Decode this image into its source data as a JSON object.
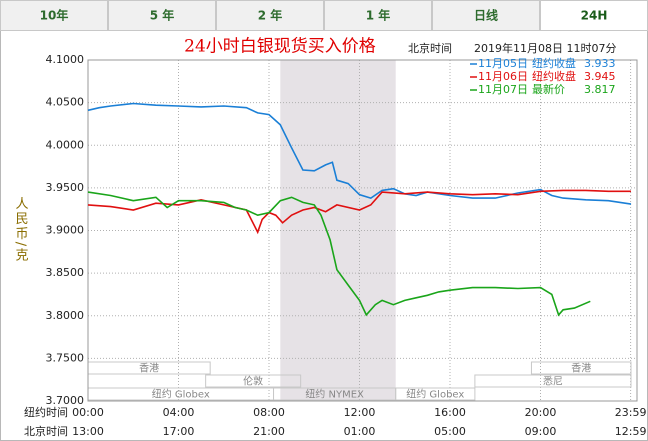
{
  "tabs": [
    "10年",
    "5 年",
    "2 年",
    "1 年",
    "日线",
    "24H"
  ],
  "active_tab": "24H",
  "chart_data": {
    "type": "line",
    "title": "24小时白银现货买入价格",
    "updated_label": "北京时间",
    "updated_time": "2019年11月08日 11时07分",
    "y_label": "人民币/克",
    "x_row_label": "纽约时间",
    "x2_row_label": "北京时间",
    "xlim": [
      0,
      24
    ],
    "xticks": [
      {
        "value": 0,
        "label": "00:00"
      },
      {
        "value": 4,
        "label": "04:00"
      },
      {
        "value": 8,
        "label": "08:00"
      },
      {
        "value": 12,
        "label": "12:00"
      },
      {
        "value": 16,
        "label": "16:00"
      },
      {
        "value": 20,
        "label": "20:00"
      },
      {
        "value": 23.983,
        "label": "23:59"
      }
    ],
    "x2_labels": [
      "13:00",
      "17:00",
      "21:00",
      "01:00",
      "05:00",
      "09:00",
      "12:59"
    ],
    "ylim": [
      3.7,
      4.1
    ],
    "yticks": [
      {
        "value": 4.1,
        "label": "4.1000"
      },
      {
        "value": 4.05,
        "label": "4.0500"
      },
      {
        "value": 4.0,
        "label": "4.0000"
      },
      {
        "value": 3.95,
        "label": "3.9500"
      },
      {
        "value": 3.9,
        "label": "3.9000"
      },
      {
        "value": 3.85,
        "label": "3.8500"
      },
      {
        "value": 3.8,
        "label": "3.8000"
      },
      {
        "value": 3.75,
        "label": "3.7500"
      },
      {
        "value": 3.7,
        "label": "3.7000"
      }
    ],
    "grid": true,
    "shaded_range": [
      8.5,
      13.6
    ],
    "sessions": [
      {
        "label": "香港",
        "start": 0,
        "end": 5.4
      },
      {
        "label": "伦敦",
        "start": 5.2,
        "end": 9.4
      },
      {
        "label": "纽约 Globex",
        "start": 0,
        "end": 8.2
      },
      {
        "label": "纽约 NYMEX",
        "start": 8.2,
        "end": 13.6
      },
      {
        "label": "纽约 Globex",
        "start": 13.6,
        "end": 17.1
      },
      {
        "label": "悉尼",
        "start": 17.1,
        "end": 24
      },
      {
        "label": "香港",
        "start": 19.6,
        "end": 24
      }
    ],
    "series": [
      {
        "name": "11月05日",
        "label": "纽约收盘",
        "last": 3.933,
        "color": "#1a7fd6",
        "x": [
          0,
          0.5,
          1,
          2,
          3,
          4,
          5,
          6,
          7,
          7.5,
          8,
          8.5,
          9,
          9.5,
          10,
          10.5,
          10.8,
          11,
          11.5,
          12,
          12.5,
          13,
          13.5,
          14,
          14.5,
          15,
          16,
          17,
          18,
          19,
          20,
          20.5,
          21,
          22,
          23,
          24
        ],
        "values": [
          4.041,
          4.044,
          4.046,
          4.049,
          4.047,
          4.046,
          4.045,
          4.046,
          4.044,
          4.038,
          4.036,
          4.024,
          3.997,
          3.971,
          3.97,
          3.977,
          3.98,
          3.959,
          3.955,
          3.942,
          3.938,
          3.947,
          3.949,
          3.943,
          3.941,
          3.945,
          3.941,
          3.938,
          3.938,
          3.944,
          3.948,
          3.941,
          3.938,
          3.936,
          3.935,
          3.931
        ]
      },
      {
        "name": "11月06日",
        "label": "纽约收盘",
        "last": 3.945,
        "color": "#e01010",
        "x": [
          0,
          1,
          2,
          3,
          4,
          5,
          6,
          7,
          7.5,
          7.7,
          8,
          8.3,
          8.6,
          9,
          9.5,
          10,
          10.5,
          11,
          12,
          12.5,
          13,
          14,
          15,
          16,
          17,
          18,
          19,
          20,
          21,
          22,
          23,
          24
        ],
        "values": [
          3.93,
          3.928,
          3.924,
          3.932,
          3.93,
          3.936,
          3.93,
          3.924,
          3.898,
          3.913,
          3.921,
          3.918,
          3.909,
          3.918,
          3.924,
          3.927,
          3.922,
          3.93,
          3.924,
          3.93,
          3.945,
          3.943,
          3.945,
          3.943,
          3.942,
          3.943,
          3.942,
          3.946,
          3.947,
          3.947,
          3.946,
          3.946
        ]
      },
      {
        "name": "11月07日",
        "label": "最新价",
        "last": 3.817,
        "color": "#1aa51a",
        "x": [
          0,
          1,
          2,
          3,
          3.5,
          4,
          5,
          6,
          6.5,
          7,
          7.5,
          8,
          8.5,
          9,
          9.5,
          10,
          10.3,
          10.7,
          11,
          11.5,
          12,
          12.3,
          12.7,
          13,
          13.5,
          14,
          14.5,
          15,
          15.5,
          16,
          17,
          18,
          19,
          20,
          20.5,
          20.8,
          21,
          21.5,
          22.2
        ],
        "values": [
          3.945,
          3.941,
          3.935,
          3.939,
          3.927,
          3.935,
          3.935,
          3.933,
          3.927,
          3.924,
          3.918,
          3.921,
          3.935,
          3.939,
          3.933,
          3.93,
          3.918,
          3.889,
          3.854,
          3.836,
          3.818,
          3.801,
          3.813,
          3.818,
          3.813,
          3.818,
          3.821,
          3.824,
          3.828,
          3.83,
          3.833,
          3.833,
          3.832,
          3.833,
          3.825,
          3.801,
          3.807,
          3.809,
          3.817
        ]
      }
    ]
  }
}
